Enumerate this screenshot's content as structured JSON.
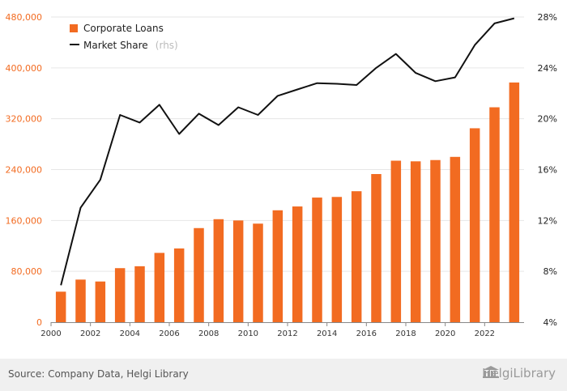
{
  "chart_data": {
    "type": "bar",
    "x": [
      2000,
      2001,
      2002,
      2003,
      2004,
      2005,
      2006,
      2007,
      2008,
      2009,
      2010,
      2011,
      2012,
      2013,
      2014,
      2015,
      2016,
      2017,
      2018,
      2019,
      2020,
      2021,
      2022,
      2023
    ],
    "x_tick_labels": [
      "2000",
      "2002",
      "2004",
      "2006",
      "2008",
      "2010",
      "2012",
      "2014",
      "2016",
      "2018",
      "2020",
      "2022"
    ],
    "series": [
      {
        "name": "Corporate Loans",
        "kind": "bar",
        "axis": "left",
        "color": "#f26b21",
        "values": [
          48000,
          67000,
          64000,
          85000,
          88000,
          109000,
          116000,
          148000,
          162000,
          160000,
          155000,
          176000,
          182000,
          196000,
          197000,
          206000,
          233000,
          254000,
          253000,
          255000,
          260000,
          305000,
          338000,
          377000
        ]
      },
      {
        "name": "Market Share",
        "name_suffix": "(rhs)",
        "kind": "line",
        "axis": "right",
        "color": "#111111",
        "values": [
          6.9,
          13.0,
          15.2,
          20.3,
          19.7,
          21.1,
          18.8,
          20.4,
          19.5,
          20.9,
          20.3,
          21.8,
          22.3,
          22.8,
          22.75,
          22.65,
          24.0,
          25.1,
          23.6,
          22.95,
          23.25,
          25.8,
          27.5,
          27.9
        ]
      }
    ],
    "y_left": {
      "lim": [
        0,
        480000
      ],
      "ticks": [
        0,
        80000,
        160000,
        240000,
        320000,
        400000,
        480000
      ],
      "tick_labels": [
        "0",
        "80,000",
        "160,000",
        "240,000",
        "320,000",
        "400,000",
        "480,000"
      ]
    },
    "y_right": {
      "lim": [
        4,
        28
      ],
      "ticks": [
        4,
        8,
        12,
        16,
        20,
        24,
        28
      ],
      "tick_labels": [
        "4%",
        "8%",
        "12%",
        "16%",
        "20%",
        "24%",
        "28%"
      ]
    },
    "grid": "horizontal",
    "legend_position": "top-left"
  },
  "footer": {
    "source": "Source: Company Data, Helgi Library",
    "brand": "HelgiLibrary"
  }
}
